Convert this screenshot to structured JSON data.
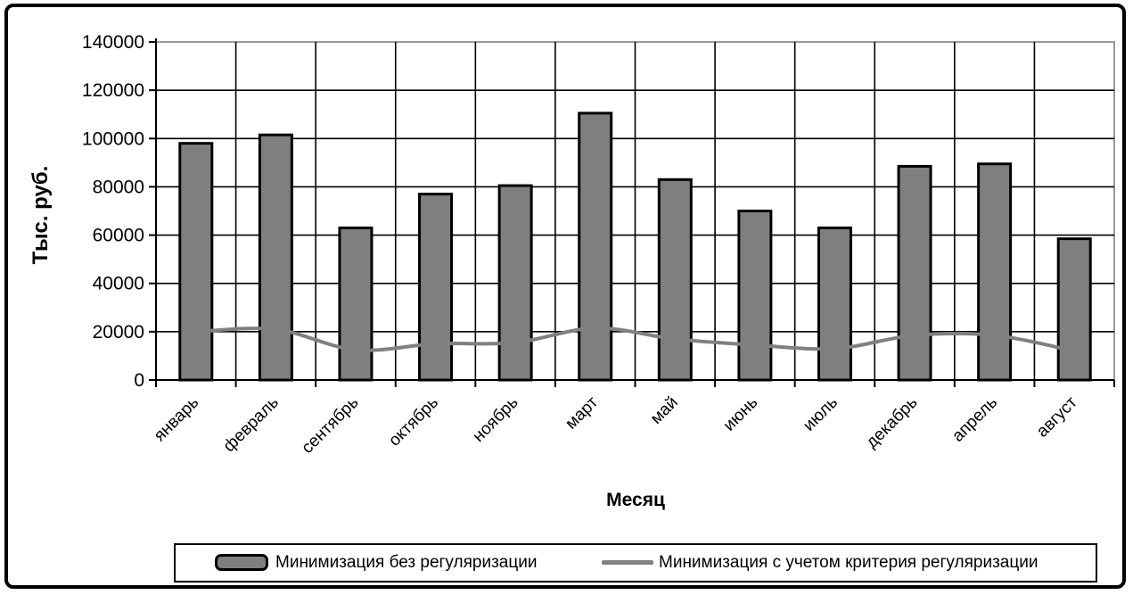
{
  "chart_data": {
    "type": "bar",
    "title": "",
    "categories": [
      "январь",
      "февраль",
      "сентябрь",
      "октябрь",
      "ноябрь",
      "март",
      "май",
      "июнь",
      "июль",
      "декабрь",
      "апрель",
      "август"
    ],
    "series": [
      {
        "name": "Минимизация без регуляризации",
        "type": "bar",
        "color": "#7f7f7f",
        "values": [
          98000,
          101500,
          63000,
          77000,
          80500,
          110500,
          83000,
          70000,
          63000,
          88500,
          89500,
          58500
        ]
      },
      {
        "name": "Минимизация с учетом критерия регуляризации",
        "type": "line",
        "color": "#808080",
        "values": [
          20000,
          21000,
          12500,
          15000,
          15500,
          21500,
          17000,
          14500,
          13000,
          18500,
          18500,
          12000
        ]
      }
    ],
    "xlabel": "Месяц",
    "ylabel": "Тыс. руб.",
    "ylim": [
      0,
      140000
    ],
    "ytick_step": 20000,
    "yticks": [
      "0",
      "20000",
      "40000",
      "60000",
      "80000",
      "100000",
      "120000",
      "140000"
    ],
    "grid": true,
    "legend_position": "bottom"
  },
  "colors": {
    "background": "#ffffff",
    "frame_border": "#000000",
    "plot_border": "#999999",
    "gridline": "#000000",
    "bar_fill": "#7f7f7f",
    "bar_stroke": "#000000",
    "line_stroke": "#808080"
  }
}
